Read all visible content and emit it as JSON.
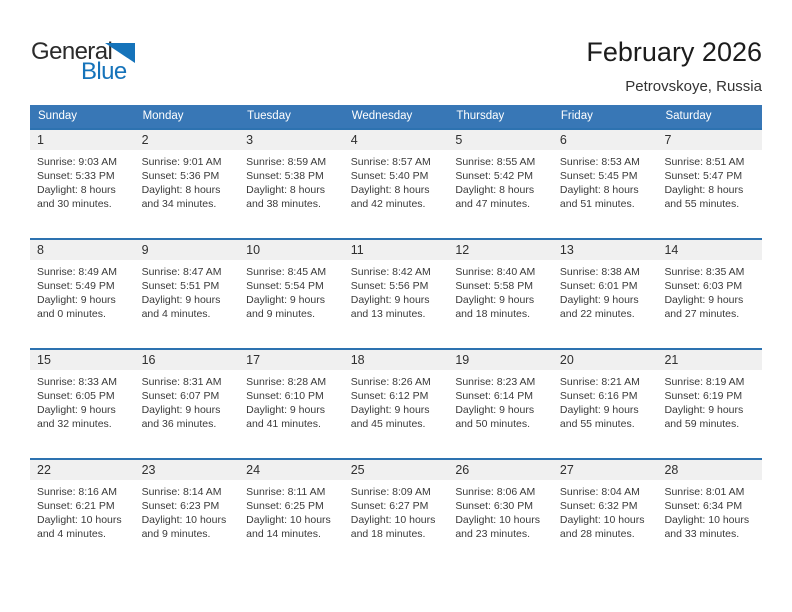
{
  "logo": {
    "part1": "General",
    "part2": "Blue"
  },
  "header": {
    "title": "February 2026",
    "location": "Petrovskoye, Russia"
  },
  "weekday_headers": [
    "Sunday",
    "Monday",
    "Tuesday",
    "Wednesday",
    "Thursday",
    "Friday",
    "Saturday"
  ],
  "colors": {
    "header_blue": "#3877b6",
    "row_border_blue": "#2d72b0",
    "day_strip_gray": "#f0f0f0",
    "logo_blue": "#1573ba"
  },
  "weeks": [
    [
      {
        "day": "1",
        "sunrise": "Sunrise: 9:03 AM",
        "sunset": "Sunset: 5:33 PM",
        "daylight": "Daylight: 8 hours and 30 minutes."
      },
      {
        "day": "2",
        "sunrise": "Sunrise: 9:01 AM",
        "sunset": "Sunset: 5:36 PM",
        "daylight": "Daylight: 8 hours and 34 minutes."
      },
      {
        "day": "3",
        "sunrise": "Sunrise: 8:59 AM",
        "sunset": "Sunset: 5:38 PM",
        "daylight": "Daylight: 8 hours and 38 minutes."
      },
      {
        "day": "4",
        "sunrise": "Sunrise: 8:57 AM",
        "sunset": "Sunset: 5:40 PM",
        "daylight": "Daylight: 8 hours and 42 minutes."
      },
      {
        "day": "5",
        "sunrise": "Sunrise: 8:55 AM",
        "sunset": "Sunset: 5:42 PM",
        "daylight": "Daylight: 8 hours and 47 minutes."
      },
      {
        "day": "6",
        "sunrise": "Sunrise: 8:53 AM",
        "sunset": "Sunset: 5:45 PM",
        "daylight": "Daylight: 8 hours and 51 minutes."
      },
      {
        "day": "7",
        "sunrise": "Sunrise: 8:51 AM",
        "sunset": "Sunset: 5:47 PM",
        "daylight": "Daylight: 8 hours and 55 minutes."
      }
    ],
    [
      {
        "day": "8",
        "sunrise": "Sunrise: 8:49 AM",
        "sunset": "Sunset: 5:49 PM",
        "daylight": "Daylight: 9 hours and 0 minutes."
      },
      {
        "day": "9",
        "sunrise": "Sunrise: 8:47 AM",
        "sunset": "Sunset: 5:51 PM",
        "daylight": "Daylight: 9 hours and 4 minutes."
      },
      {
        "day": "10",
        "sunrise": "Sunrise: 8:45 AM",
        "sunset": "Sunset: 5:54 PM",
        "daylight": "Daylight: 9 hours and 9 minutes."
      },
      {
        "day": "11",
        "sunrise": "Sunrise: 8:42 AM",
        "sunset": "Sunset: 5:56 PM",
        "daylight": "Daylight: 9 hours and 13 minutes."
      },
      {
        "day": "12",
        "sunrise": "Sunrise: 8:40 AM",
        "sunset": "Sunset: 5:58 PM",
        "daylight": "Daylight: 9 hours and 18 minutes."
      },
      {
        "day": "13",
        "sunrise": "Sunrise: 8:38 AM",
        "sunset": "Sunset: 6:01 PM",
        "daylight": "Daylight: 9 hours and 22 minutes."
      },
      {
        "day": "14",
        "sunrise": "Sunrise: 8:35 AM",
        "sunset": "Sunset: 6:03 PM",
        "daylight": "Daylight: 9 hours and 27 minutes."
      }
    ],
    [
      {
        "day": "15",
        "sunrise": "Sunrise: 8:33 AM",
        "sunset": "Sunset: 6:05 PM",
        "daylight": "Daylight: 9 hours and 32 minutes."
      },
      {
        "day": "16",
        "sunrise": "Sunrise: 8:31 AM",
        "sunset": "Sunset: 6:07 PM",
        "daylight": "Daylight: 9 hours and 36 minutes."
      },
      {
        "day": "17",
        "sunrise": "Sunrise: 8:28 AM",
        "sunset": "Sunset: 6:10 PM",
        "daylight": "Daylight: 9 hours and 41 minutes."
      },
      {
        "day": "18",
        "sunrise": "Sunrise: 8:26 AM",
        "sunset": "Sunset: 6:12 PM",
        "daylight": "Daylight: 9 hours and 45 minutes."
      },
      {
        "day": "19",
        "sunrise": "Sunrise: 8:23 AM",
        "sunset": "Sunset: 6:14 PM",
        "daylight": "Daylight: 9 hours and 50 minutes."
      },
      {
        "day": "20",
        "sunrise": "Sunrise: 8:21 AM",
        "sunset": "Sunset: 6:16 PM",
        "daylight": "Daylight: 9 hours and 55 minutes."
      },
      {
        "day": "21",
        "sunrise": "Sunrise: 8:19 AM",
        "sunset": "Sunset: 6:19 PM",
        "daylight": "Daylight: 9 hours and 59 minutes."
      }
    ],
    [
      {
        "day": "22",
        "sunrise": "Sunrise: 8:16 AM",
        "sunset": "Sunset: 6:21 PM",
        "daylight": "Daylight: 10 hours and 4 minutes."
      },
      {
        "day": "23",
        "sunrise": "Sunrise: 8:14 AM",
        "sunset": "Sunset: 6:23 PM",
        "daylight": "Daylight: 10 hours and 9 minutes."
      },
      {
        "day": "24",
        "sunrise": "Sunrise: 8:11 AM",
        "sunset": "Sunset: 6:25 PM",
        "daylight": "Daylight: 10 hours and 14 minutes."
      },
      {
        "day": "25",
        "sunrise": "Sunrise: 8:09 AM",
        "sunset": "Sunset: 6:27 PM",
        "daylight": "Daylight: 10 hours and 18 minutes."
      },
      {
        "day": "26",
        "sunrise": "Sunrise: 8:06 AM",
        "sunset": "Sunset: 6:30 PM",
        "daylight": "Daylight: 10 hours and 23 minutes."
      },
      {
        "day": "27",
        "sunrise": "Sunrise: 8:04 AM",
        "sunset": "Sunset: 6:32 PM",
        "daylight": "Daylight: 10 hours and 28 minutes."
      },
      {
        "day": "28",
        "sunrise": "Sunrise: 8:01 AM",
        "sunset": "Sunset: 6:34 PM",
        "daylight": "Daylight: 10 hours and 33 minutes."
      }
    ]
  ]
}
